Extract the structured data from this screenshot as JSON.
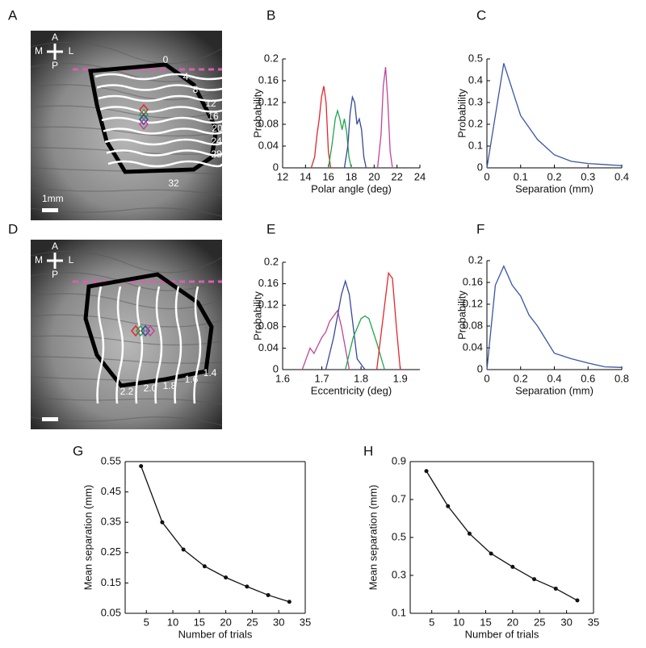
{
  "images": [
    {
      "panel": "A",
      "orientation": {
        "anterior": "A",
        "posterior": "P",
        "medial": "M",
        "lateral": "L"
      },
      "contour_labels": [
        "0",
        "4",
        "8",
        "12",
        "16",
        "20",
        "24",
        "28",
        "32"
      ],
      "scale_bar": "1mm"
    },
    {
      "panel": "D",
      "orientation": {
        "anterior": "A",
        "posterior": "P",
        "medial": "M",
        "lateral": "L"
      },
      "contour_labels": [
        "1.4",
        "1.6",
        "1.8",
        "2.0",
        "2.2"
      ]
    }
  ],
  "chart_data": [
    {
      "panel": "B",
      "type": "line",
      "xlabel": "Polar angle (deg)",
      "ylabel": "Probability",
      "xlim": [
        12,
        24
      ],
      "xticks": [
        12,
        14,
        16,
        18,
        20,
        22,
        24
      ],
      "ylim": [
        0,
        0.2
      ],
      "yticks": [
        0,
        0.04,
        0.08,
        0.12,
        0.16,
        0.2
      ],
      "series": [
        {
          "color": "#e3262c",
          "x": [
            14.5,
            14.8,
            15.0,
            15.2,
            15.4,
            15.6,
            15.8,
            16.0,
            16.2
          ],
          "values": [
            0,
            0.02,
            0.06,
            0.09,
            0.13,
            0.15,
            0.12,
            0.03,
            0
          ]
        },
        {
          "color": "#1fa64a",
          "x": [
            16.0,
            16.3,
            16.6,
            16.8,
            17.0,
            17.2,
            17.4,
            17.6,
            17.8,
            18.0
          ],
          "values": [
            0,
            0.04,
            0.09,
            0.105,
            0.09,
            0.07,
            0.09,
            0.065,
            0.02,
            0
          ]
        },
        {
          "color": "#35489c",
          "x": [
            17.4,
            17.7,
            17.9,
            18.1,
            18.3,
            18.5,
            18.7,
            18.9,
            19.1,
            19.3
          ],
          "values": [
            0,
            0.04,
            0.1,
            0.13,
            0.12,
            0.08,
            0.09,
            0.07,
            0.02,
            0
          ]
        },
        {
          "color": "#c0449a",
          "x": [
            20.3,
            20.6,
            20.8,
            21.0,
            21.2,
            21.4,
            21.6
          ],
          "values": [
            0,
            0.06,
            0.15,
            0.185,
            0.12,
            0.03,
            0
          ]
        }
      ]
    },
    {
      "panel": "C",
      "type": "line",
      "xlabel": "Separation (mm)",
      "ylabel": "Probability",
      "xlim": [
        0,
        0.4
      ],
      "xticks": [
        0,
        0.1,
        0.2,
        0.3,
        0.4
      ],
      "ylim": [
        0,
        0.5
      ],
      "yticks": [
        0,
        0.1,
        0.2,
        0.3,
        0.4,
        0.5
      ],
      "color": "#3a55a4",
      "x": [
        0,
        0.05,
        0.1,
        0.15,
        0.2,
        0.25,
        0.3,
        0.35,
        0.4
      ],
      "values": [
        0,
        0.48,
        0.24,
        0.13,
        0.06,
        0.03,
        0.02,
        0.015,
        0.01
      ]
    },
    {
      "panel": "E",
      "type": "line",
      "xlabel": "Eccentricity (deg)",
      "ylabel": "Probability",
      "xlim": [
        1.6,
        1.95
      ],
      "xticks": [
        1.6,
        1.7,
        1.8,
        1.9
      ],
      "ylim": [
        0,
        0.2
      ],
      "yticks": [
        0,
        0.04,
        0.08,
        0.12,
        0.16,
        0.2
      ],
      "series": [
        {
          "color": "#c0449a",
          "x": [
            1.65,
            1.67,
            1.68,
            1.7,
            1.71,
            1.72,
            1.73,
            1.74,
            1.75,
            1.76,
            1.77
          ],
          "values": [
            0,
            0.04,
            0.03,
            0.06,
            0.07,
            0.09,
            0.1,
            0.11,
            0.08,
            0.04,
            0
          ]
        },
        {
          "color": "#35489c",
          "x": [
            1.71,
            1.73,
            1.75,
            1.76,
            1.77,
            1.78,
            1.79,
            1.81
          ],
          "values": [
            0,
            0.06,
            0.14,
            0.165,
            0.14,
            0.08,
            0.02,
            0
          ]
        },
        {
          "color": "#1fa64a",
          "x": [
            1.76,
            1.78,
            1.8,
            1.81,
            1.82,
            1.84,
            1.86
          ],
          "values": [
            0,
            0.06,
            0.095,
            0.1,
            0.095,
            0.05,
            0
          ]
        },
        {
          "color": "#e3262c",
          "x": [
            1.84,
            1.86,
            1.87,
            1.88,
            1.89,
            1.9
          ],
          "values": [
            0,
            0.12,
            0.18,
            0.17,
            0.08,
            0
          ]
        }
      ]
    },
    {
      "panel": "F",
      "type": "line",
      "xlabel": "Separation (mm)",
      "ylabel": "Probability",
      "xlim": [
        0,
        0.8
      ],
      "xticks": [
        0,
        0.2,
        0.4,
        0.6,
        0.8
      ],
      "ylim": [
        0,
        0.2
      ],
      "yticks": [
        0,
        0.04,
        0.08,
        0.12,
        0.16,
        0.2
      ],
      "color": "#3a55a4",
      "x": [
        0,
        0.05,
        0.1,
        0.15,
        0.2,
        0.25,
        0.3,
        0.35,
        0.4,
        0.5,
        0.6,
        0.7,
        0.8
      ],
      "values": [
        0,
        0.155,
        0.19,
        0.155,
        0.135,
        0.1,
        0.08,
        0.055,
        0.03,
        0.02,
        0.012,
        0.005,
        0.004
      ]
    },
    {
      "panel": "G",
      "type": "line",
      "markers": true,
      "box": true,
      "xlabel": "Number of trials",
      "ylabel": "Mean separation (mm)",
      "xlim": [
        1,
        35
      ],
      "xticks": [
        5,
        10,
        15,
        20,
        25,
        30,
        35
      ],
      "ylim": [
        0.05,
        0.55
      ],
      "yticks": [
        0.05,
        0.15,
        0.25,
        0.35,
        0.45,
        0.55
      ],
      "color": "#111111",
      "x": [
        4,
        8,
        12,
        16,
        20,
        24,
        28,
        32
      ],
      "values": [
        0.535,
        0.35,
        0.26,
        0.205,
        0.168,
        0.138,
        0.11,
        0.088
      ]
    },
    {
      "panel": "H",
      "type": "line",
      "markers": true,
      "box": true,
      "xlabel": "Number of trials",
      "ylabel": "Mean separation (mm)",
      "xlim": [
        1,
        35
      ],
      "xticks": [
        5,
        10,
        15,
        20,
        25,
        30,
        35
      ],
      "ylim": [
        0.1,
        0.9
      ],
      "yticks": [
        0.1,
        0.3,
        0.5,
        0.7,
        0.9
      ],
      "color": "#111111",
      "x": [
        4,
        8,
        12,
        16,
        20,
        24,
        28,
        32
      ],
      "values": [
        0.85,
        0.665,
        0.52,
        0.415,
        0.345,
        0.28,
        0.23,
        0.168
      ]
    }
  ]
}
